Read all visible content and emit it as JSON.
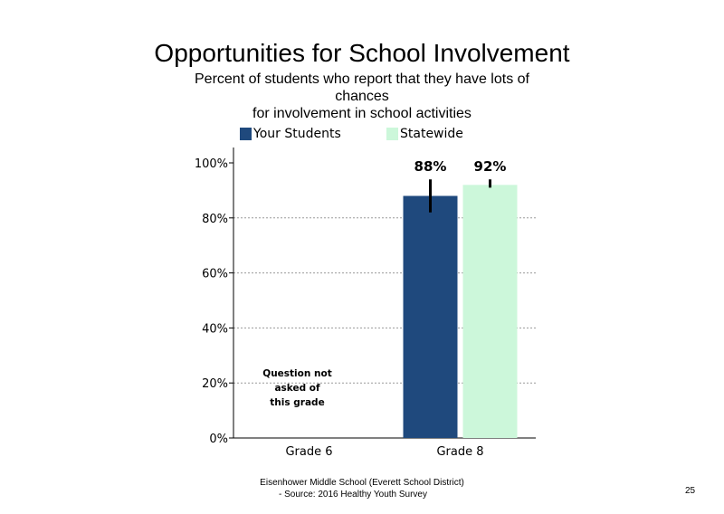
{
  "chart_data": {
    "type": "bar",
    "title": "Opportunities for School Involvement",
    "subtitle": [
      "Percent of students who report that they have lots of chances",
      "for involvement in school activities"
    ],
    "categories": [
      "Grade 6",
      "Grade 8"
    ],
    "series": [
      {
        "name": "Your Students",
        "values": [
          null,
          88
        ],
        "labels": [
          null,
          "88%"
        ],
        "error": [
          null,
          [
            82,
            94
          ]
        ]
      },
      {
        "name": "Statewide",
        "values": [
          null,
          92
        ],
        "labels": [
          null,
          "92%"
        ],
        "error": [
          null,
          [
            91,
            94
          ]
        ]
      }
    ],
    "ylim": [
      0,
      100
    ],
    "yticks": [
      "0%",
      "20%",
      "40%",
      "60%",
      "80%",
      "100%"
    ],
    "gridlines": "dotted",
    "legend": "top",
    "annotation": {
      "category": "Grade 6",
      "lines": [
        "Question not",
        "asked of",
        "this grade"
      ]
    },
    "colors": {
      "Your Students": "#1f497d",
      "Statewide": "#ccf7da"
    }
  },
  "footer": {
    "line1": "Eisenhower Middle School (Everett School District)",
    "line2": "- Source: 2016 Healthy  Youth Survey"
  },
  "page_number": "25"
}
